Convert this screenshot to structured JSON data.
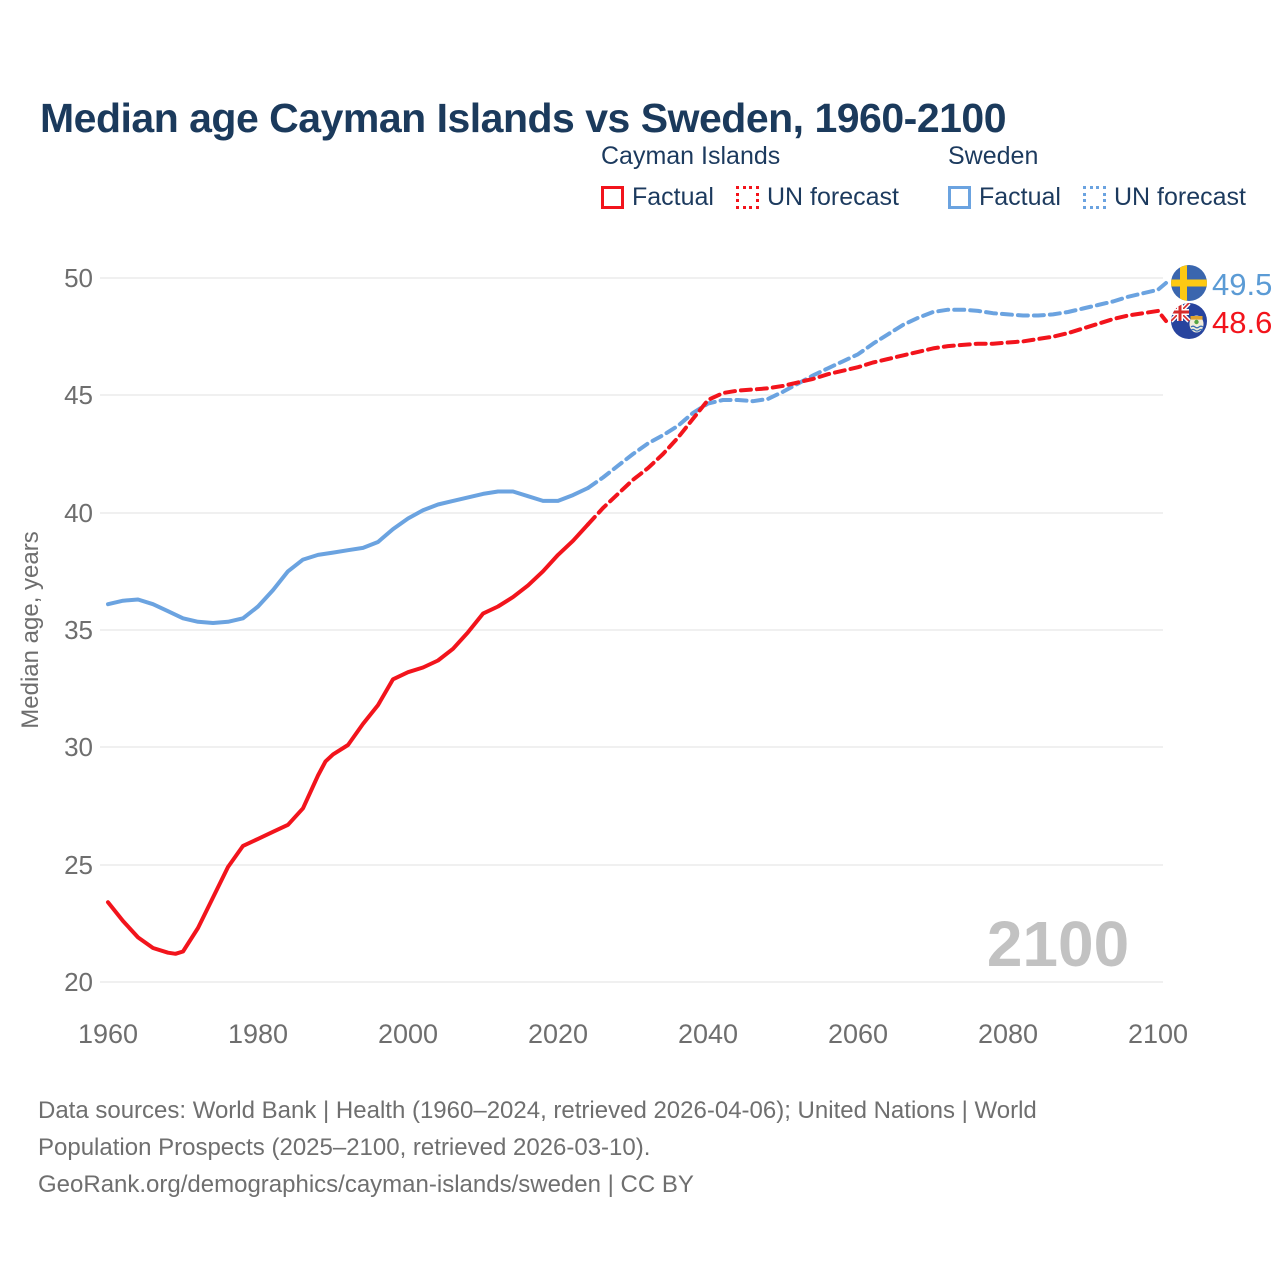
{
  "title": "Median age Cayman Islands vs Sweden, 1960-2100",
  "legend": {
    "groups": [
      {
        "name": "Cayman Islands",
        "items": [
          {
            "label": "Factual"
          },
          {
            "label": "UN forecast"
          }
        ]
      },
      {
        "name": "Sweden",
        "items": [
          {
            "label": "Factual"
          },
          {
            "label": "UN forecast"
          }
        ]
      }
    ]
  },
  "chart_data": {
    "type": "line",
    "title": "Median age Cayman Islands vs Sweden, 1960-2100",
    "xlabel": "",
    "ylabel": "Median age, years",
    "xlim": [
      1960,
      2100
    ],
    "ylim": [
      20,
      50
    ],
    "xticks": [
      1960,
      1980,
      2000,
      2020,
      2040,
      2060,
      2080,
      2100
    ],
    "yticks": [
      20,
      25,
      30,
      35,
      40,
      45,
      50
    ],
    "grid": "horizontal",
    "legend_position": "top-right",
    "watermark": "2100",
    "colors": {
      "cayman": "#f2141c",
      "sweden": "#6ba3e0"
    },
    "series": [
      {
        "name": "Cayman Islands — Factual",
        "country": "Cayman Islands",
        "kind": "factual",
        "color": "#f2141c",
        "line": "solid",
        "points": [
          [
            1960,
            23.4
          ],
          [
            1962,
            22.6
          ],
          [
            1964,
            21.9
          ],
          [
            1966,
            21.45
          ],
          [
            1968,
            21.25
          ],
          [
            1969,
            21.2
          ],
          [
            1970,
            21.3
          ],
          [
            1972,
            22.3
          ],
          [
            1974,
            23.6
          ],
          [
            1976,
            24.9
          ],
          [
            1978,
            25.8
          ],
          [
            1980,
            26.1
          ],
          [
            1982,
            26.4
          ],
          [
            1984,
            26.7
          ],
          [
            1986,
            27.4
          ],
          [
            1988,
            28.8
          ],
          [
            1989,
            29.4
          ],
          [
            1990,
            29.7
          ],
          [
            1992,
            30.1
          ],
          [
            1994,
            31.0
          ],
          [
            1996,
            31.8
          ],
          [
            1998,
            32.9
          ],
          [
            2000,
            33.2
          ],
          [
            2002,
            33.4
          ],
          [
            2004,
            33.7
          ],
          [
            2006,
            34.2
          ],
          [
            2008,
            34.9
          ],
          [
            2010,
            35.7
          ],
          [
            2012,
            36.0
          ],
          [
            2014,
            36.4
          ],
          [
            2016,
            36.9
          ],
          [
            2018,
            37.5
          ],
          [
            2020,
            38.2
          ],
          [
            2022,
            38.8
          ],
          [
            2024,
            39.5
          ]
        ]
      },
      {
        "name": "Cayman Islands — UN forecast",
        "country": "Cayman Islands",
        "kind": "forecast",
        "color": "#f2141c",
        "line": "dashed",
        "points": [
          [
            2024,
            39.5
          ],
          [
            2026,
            40.2
          ],
          [
            2028,
            40.8
          ],
          [
            2030,
            41.4
          ],
          [
            2032,
            41.9
          ],
          [
            2034,
            42.5
          ],
          [
            2036,
            43.2
          ],
          [
            2038,
            44.0
          ],
          [
            2040,
            44.8
          ],
          [
            2042,
            45.1
          ],
          [
            2044,
            45.2
          ],
          [
            2046,
            45.25
          ],
          [
            2048,
            45.3
          ],
          [
            2050,
            45.4
          ],
          [
            2052,
            45.55
          ],
          [
            2054,
            45.7
          ],
          [
            2056,
            45.9
          ],
          [
            2058,
            46.05
          ],
          [
            2060,
            46.2
          ],
          [
            2062,
            46.4
          ],
          [
            2064,
            46.55
          ],
          [
            2066,
            46.7
          ],
          [
            2068,
            46.85
          ],
          [
            2070,
            47.0
          ],
          [
            2072,
            47.1
          ],
          [
            2074,
            47.15
          ],
          [
            2076,
            47.2
          ],
          [
            2078,
            47.2
          ],
          [
            2080,
            47.25
          ],
          [
            2082,
            47.3
          ],
          [
            2084,
            47.4
          ],
          [
            2086,
            47.5
          ],
          [
            2088,
            47.65
          ],
          [
            2090,
            47.85
          ],
          [
            2092,
            48.05
          ],
          [
            2094,
            48.25
          ],
          [
            2096,
            48.4
          ],
          [
            2098,
            48.5
          ],
          [
            2100,
            48.6
          ]
        ]
      },
      {
        "name": "Sweden — Factual",
        "country": "Sweden",
        "kind": "factual",
        "color": "#6ba3e0",
        "line": "solid",
        "points": [
          [
            1960,
            36.1
          ],
          [
            1962,
            36.25
          ],
          [
            1964,
            36.3
          ],
          [
            1966,
            36.1
          ],
          [
            1968,
            35.8
          ],
          [
            1970,
            35.5
          ],
          [
            1972,
            35.35
          ],
          [
            1974,
            35.3
          ],
          [
            1976,
            35.35
          ],
          [
            1978,
            35.5
          ],
          [
            1980,
            36.0
          ],
          [
            1982,
            36.7
          ],
          [
            1984,
            37.5
          ],
          [
            1986,
            38.0
          ],
          [
            1988,
            38.2
          ],
          [
            1990,
            38.3
          ],
          [
            1992,
            38.4
          ],
          [
            1994,
            38.5
          ],
          [
            1996,
            38.75
          ],
          [
            1998,
            39.3
          ],
          [
            2000,
            39.75
          ],
          [
            2002,
            40.1
          ],
          [
            2004,
            40.35
          ],
          [
            2006,
            40.5
          ],
          [
            2008,
            40.65
          ],
          [
            2010,
            40.8
          ],
          [
            2012,
            40.9
          ],
          [
            2014,
            40.9
          ],
          [
            2016,
            40.7
          ],
          [
            2018,
            40.5
          ],
          [
            2020,
            40.5
          ],
          [
            2022,
            40.75
          ],
          [
            2024,
            41.05
          ]
        ]
      },
      {
        "name": "Sweden — UN forecast",
        "country": "Sweden",
        "kind": "forecast",
        "color": "#6ba3e0",
        "line": "dashed",
        "points": [
          [
            2024,
            41.05
          ],
          [
            2026,
            41.5
          ],
          [
            2028,
            42.0
          ],
          [
            2030,
            42.5
          ],
          [
            2032,
            42.95
          ],
          [
            2034,
            43.3
          ],
          [
            2036,
            43.7
          ],
          [
            2038,
            44.25
          ],
          [
            2040,
            44.65
          ],
          [
            2042,
            44.8
          ],
          [
            2044,
            44.8
          ],
          [
            2046,
            44.75
          ],
          [
            2048,
            44.85
          ],
          [
            2050,
            45.15
          ],
          [
            2052,
            45.5
          ],
          [
            2054,
            45.85
          ],
          [
            2056,
            46.15
          ],
          [
            2058,
            46.45
          ],
          [
            2060,
            46.75
          ],
          [
            2062,
            47.2
          ],
          [
            2064,
            47.6
          ],
          [
            2066,
            48.0
          ],
          [
            2068,
            48.3
          ],
          [
            2070,
            48.55
          ],
          [
            2072,
            48.65
          ],
          [
            2074,
            48.65
          ],
          [
            2076,
            48.6
          ],
          [
            2078,
            48.5
          ],
          [
            2080,
            48.45
          ],
          [
            2082,
            48.4
          ],
          [
            2084,
            48.4
          ],
          [
            2086,
            48.45
          ],
          [
            2088,
            48.55
          ],
          [
            2090,
            48.7
          ],
          [
            2092,
            48.85
          ],
          [
            2094,
            49.0
          ],
          [
            2096,
            49.2
          ],
          [
            2098,
            49.35
          ],
          [
            2100,
            49.5
          ]
        ]
      }
    ],
    "end_labels": [
      {
        "country": "Sweden",
        "value": "49.5",
        "color": "#5b9bd5",
        "flag": "sweden-flag"
      },
      {
        "country": "Cayman Islands",
        "value": "48.6",
        "color": "#f2141c",
        "flag": "cayman-islands-flag"
      }
    ]
  },
  "footer": {
    "lines": [
      "Data sources: World Bank | Health (1960–2024, retrieved 2026-04-06); United Nations | World",
      "Population Prospects (2025–2100, retrieved 2026-03-10).",
      "GeoRank.org/demographics/cayman-islands/sweden | CC BY"
    ]
  }
}
